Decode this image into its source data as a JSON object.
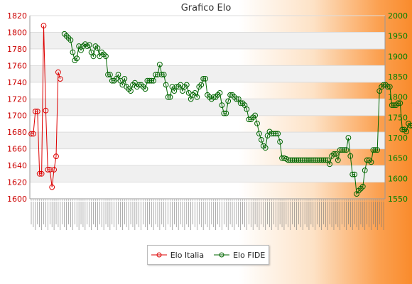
{
  "chart_title": "Grafico Elo",
  "colors": {
    "italia": "#dd0000",
    "fide": "#006600",
    "left_axis": "#cc0000",
    "right_axis": "#008000"
  },
  "chart_data": {
    "type": "line",
    "title": "Grafico Elo",
    "y_left": {
      "ylim": [
        1600,
        1820
      ],
      "ticks": [
        1600,
        1620,
        1640,
        1660,
        1680,
        1700,
        1720,
        1740,
        1760,
        1780,
        1800,
        1820
      ]
    },
    "y_right": {
      "ylim": [
        1550,
        2000
      ],
      "ticks": [
        1550,
        1600,
        1650,
        1700,
        1750,
        1800,
        1850,
        1900,
        1950,
        2000
      ]
    },
    "x_count": 171,
    "grid": "horizontal",
    "legend": "bottom-center",
    "series": [
      {
        "name": "Elo Italia",
        "axis": "left",
        "start_index": 0,
        "values": [
          1678,
          1678,
          1705,
          1705,
          1630,
          1630,
          1808,
          1706,
          1635,
          1635,
          1614,
          1635,
          1651,
          1752,
          1744
        ]
      },
      {
        "name": "Elo FIDE",
        "axis": "right",
        "start_index": 16,
        "values": [
          1955,
          1950,
          1945,
          1940,
          1910,
          1890,
          1895,
          1925,
          1915,
          1925,
          1930,
          1925,
          1928,
          1910,
          1900,
          1925,
          1920,
          1900,
          1910,
          1905,
          1900,
          1855,
          1855,
          1840,
          1840,
          1845,
          1855,
          1840,
          1830,
          1845,
          1825,
          1820,
          1815,
          1830,
          1835,
          1825,
          1830,
          1830,
          1825,
          1820,
          1840,
          1840,
          1840,
          1840,
          1855,
          1855,
          1880,
          1855,
          1855,
          1830,
          1800,
          1800,
          1825,
          1815,
          1825,
          1825,
          1830,
          1815,
          1825,
          1830,
          1810,
          1795,
          1805,
          1810,
          1800,
          1825,
          1830,
          1845,
          1845,
          1805,
          1800,
          1795,
          1800,
          1800,
          1805,
          1810,
          1780,
          1760,
          1760,
          1790,
          1805,
          1805,
          1800,
          1795,
          1795,
          1785,
          1785,
          1780,
          1770,
          1745,
          1745,
          1750,
          1755,
          1735,
          1710,
          1695,
          1680,
          1675,
          1705,
          1715,
          1710,
          1710,
          1710,
          1710,
          1690,
          1650,
          1650,
          1648,
          1645,
          1645,
          1645,
          1645,
          1645,
          1645,
          1645,
          1645,
          1645,
          1645,
          1645,
          1645,
          1645,
          1645,
          1645,
          1645,
          1645,
          1645,
          1645,
          1645,
          1635,
          1655,
          1660,
          1660,
          1645,
          1670,
          1670,
          1670,
          1670,
          1700,
          1655,
          1610,
          1610,
          1562,
          1570,
          1575,
          1580,
          1620,
          1645,
          1645,
          1640,
          1670,
          1670,
          1670,
          1815,
          1825,
          1830,
          1830,
          1825,
          1825,
          1780,
          1780,
          1780,
          1785,
          1785,
          1720,
          1720,
          1715,
          1735,
          1730,
          1730,
          1785,
          1785,
          1730
        ]
      }
    ]
  },
  "legend": {
    "italia_label": "Elo Italia",
    "fide_label": "Elo FIDE"
  }
}
